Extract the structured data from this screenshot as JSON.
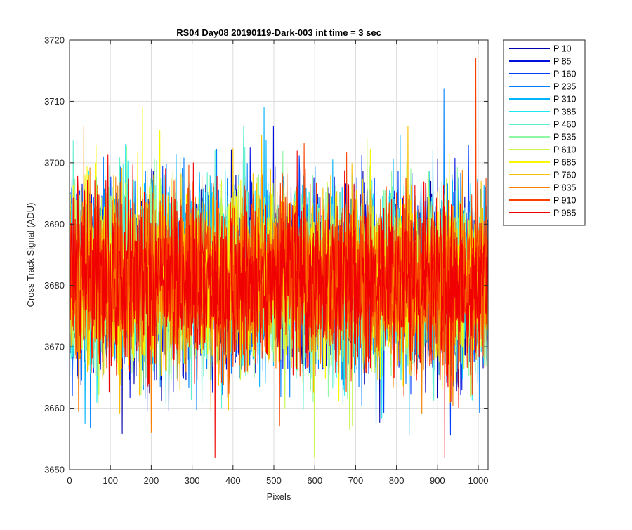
{
  "chart_data": {
    "type": "line",
    "title": "RS04 Day08 20190119-Dark-003 int time = 3 sec",
    "xlabel": "Pixels",
    "ylabel": "Cross Track Signal (ADU)",
    "xlim": [
      0,
      1024
    ],
    "ylim": [
      3650,
      3720
    ],
    "x_ticks": [
      0,
      100,
      200,
      300,
      400,
      500,
      600,
      700,
      800,
      900,
      1000
    ],
    "y_ticks": [
      3650,
      3660,
      3670,
      3680,
      3690,
      3700,
      3710,
      3720
    ],
    "grid": true,
    "legend_position": "outside-right",
    "noise_model": {
      "points_per_series": 1024,
      "mean": 3681,
      "std_dev": 7,
      "note_range": "values mostly between 3652 and 3717"
    },
    "series": [
      {
        "name": "P 10",
        "color": "#0000aa"
      },
      {
        "name": "P 85",
        "color": "#0010dd"
      },
      {
        "name": "P 160",
        "color": "#0040ff"
      },
      {
        "name": "P 235",
        "color": "#0080ff"
      },
      {
        "name": "P 310",
        "color": "#00b4ff"
      },
      {
        "name": "P 385",
        "color": "#20e8f0"
      },
      {
        "name": "P 460",
        "color": "#60f0d0"
      },
      {
        "name": "P 535",
        "color": "#90f8a0"
      },
      {
        "name": "P 610",
        "color": "#c8f850"
      },
      {
        "name": "P 685",
        "color": "#f8f800"
      },
      {
        "name": "P 760",
        "color": "#f8c000"
      },
      {
        "name": "P 835",
        "color": "#f88000"
      },
      {
        "name": "P 910",
        "color": "#f84000"
      },
      {
        "name": "P 985",
        "color": "#f00000"
      }
    ],
    "notable_extremes": [
      {
        "series": "P 910",
        "x": 993,
        "y": 3717
      },
      {
        "series": "P 235",
        "x": 915,
        "y": 3712
      },
      {
        "series": "P 310",
        "x": 475,
        "y": 3709
      },
      {
        "series": "P 685",
        "x": 178,
        "y": 3709
      },
      {
        "series": "P 985",
        "x": 355,
        "y": 3652
      },
      {
        "series": "P 985",
        "x": 917,
        "y": 3652
      },
      {
        "series": "P 610",
        "x": 598,
        "y": 3652
      }
    ]
  }
}
